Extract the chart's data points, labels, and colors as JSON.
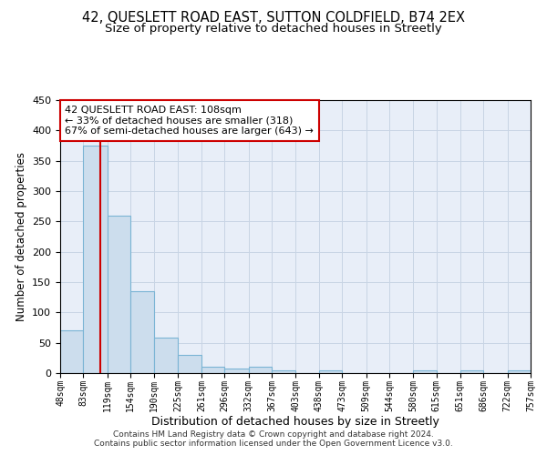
{
  "title": "42, QUESLETT ROAD EAST, SUTTON COLDFIELD, B74 2EX",
  "subtitle": "Size of property relative to detached houses in Streetly",
  "xlabel": "Distribution of detached houses by size in Streetly",
  "ylabel": "Number of detached properties",
  "bin_edges": [
    48,
    83,
    119,
    154,
    190,
    225,
    261,
    296,
    332,
    367,
    403,
    438,
    473,
    509,
    544,
    580,
    615,
    651,
    686,
    722,
    757
  ],
  "bin_labels": [
    "48sqm",
    "83sqm",
    "119sqm",
    "154sqm",
    "190sqm",
    "225sqm",
    "261sqm",
    "296sqm",
    "332sqm",
    "367sqm",
    "403sqm",
    "438sqm",
    "473sqm",
    "509sqm",
    "544sqm",
    "580sqm",
    "615sqm",
    "651sqm",
    "686sqm",
    "722sqm",
    "757sqm"
  ],
  "bar_heights": [
    70,
    375,
    260,
    135,
    58,
    30,
    10,
    8,
    10,
    5,
    0,
    5,
    0,
    0,
    0,
    5,
    0,
    5,
    0,
    5
  ],
  "bar_color": "#ccdded",
  "bar_edge_color": "#7ab4d4",
  "property_line_x": 108,
  "property_line_color": "#cc0000",
  "annotation_text": "42 QUESLETT ROAD EAST: 108sqm\n← 33% of detached houses are smaller (318)\n67% of semi-detached houses are larger (643) →",
  "annotation_box_color": "#ffffff",
  "annotation_box_edge": "#cc0000",
  "ylim": [
    0,
    450
  ],
  "yticks": [
    0,
    50,
    100,
    150,
    200,
    250,
    300,
    350,
    400,
    450
  ],
  "grid_color": "#c8d4e4",
  "background_color": "#e8eef8",
  "footer_line1": "Contains HM Land Registry data © Crown copyright and database right 2024.",
  "footer_line2": "Contains public sector information licensed under the Open Government Licence v3.0.",
  "title_fontsize": 10.5,
  "subtitle_fontsize": 9.5,
  "xlabel_fontsize": 9,
  "ylabel_fontsize": 8.5,
  "annotation_fontsize": 8
}
